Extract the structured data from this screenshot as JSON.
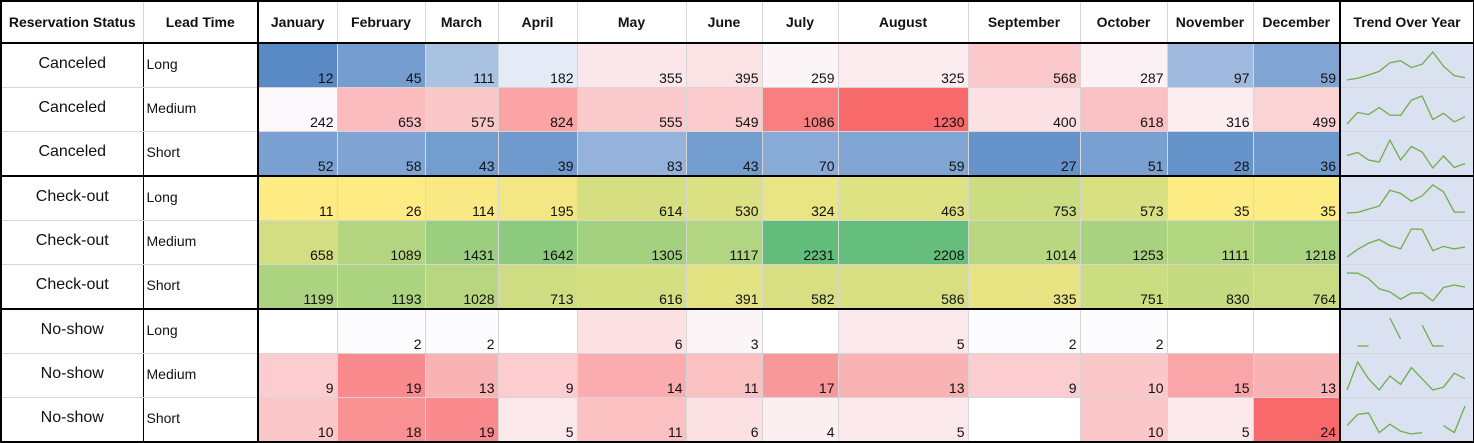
{
  "headers": {
    "status": "Reservation Status",
    "lead": "Lead Time",
    "months": [
      "January",
      "February",
      "March",
      "April",
      "May",
      "June",
      "July",
      "August",
      "September",
      "October",
      "November",
      "December"
    ],
    "trend": "Trend Over Year"
  },
  "rows": [
    {
      "status": "Canceled",
      "lead": "Long",
      "values": [
        12,
        45,
        111,
        182,
        355,
        395,
        259,
        325,
        568,
        287,
        97,
        59
      ]
    },
    {
      "status": "Canceled",
      "lead": "Medium",
      "values": [
        242,
        653,
        575,
        824,
        555,
        549,
        1086,
        1230,
        400,
        618,
        316,
        499
      ]
    },
    {
      "status": "Canceled",
      "lead": "Short",
      "values": [
        52,
        58,
        43,
        39,
        83,
        43,
        70,
        59,
        27,
        51,
        28,
        36
      ]
    },
    {
      "status": "Check-out",
      "lead": "Long",
      "values": [
        11,
        26,
        114,
        195,
        614,
        530,
        324,
        463,
        753,
        573,
        35,
        35
      ]
    },
    {
      "status": "Check-out",
      "lead": "Medium",
      "values": [
        658,
        1089,
        1431,
        1642,
        1305,
        1117,
        2231,
        2208,
        1014,
        1253,
        1111,
        1218
      ]
    },
    {
      "status": "Check-out",
      "lead": "Short",
      "values": [
        1199,
        1193,
        1028,
        713,
        616,
        391,
        582,
        586,
        335,
        751,
        830,
        764
      ]
    },
    {
      "status": "No-show",
      "lead": "Long",
      "values": [
        null,
        2,
        2,
        null,
        6,
        3,
        null,
        5,
        2,
        2,
        null,
        null
      ]
    },
    {
      "status": "No-show",
      "lead": "Medium",
      "values": [
        9,
        19,
        13,
        9,
        14,
        11,
        17,
        13,
        9,
        10,
        15,
        13
      ]
    },
    {
      "status": "No-show",
      "lead": "Short",
      "values": [
        10,
        18,
        19,
        5,
        11,
        6,
        4,
        5,
        null,
        10,
        5,
        24
      ]
    }
  ],
  "colors": {
    "canceled_low": "#5a8ac6",
    "canceled_mid": "#fcfcff",
    "canceled_high": "#f8696b",
    "checkout_low": "#ffeb84",
    "checkout_high": "#63be7b",
    "noshow_low": "#fcfcff",
    "noshow_high": "#f8696b",
    "sparkline_line": "#70ad47",
    "sparkline_bg": "#dae2f1",
    "grid_line": "#d6d6d6",
    "border": "#000000"
  }
}
